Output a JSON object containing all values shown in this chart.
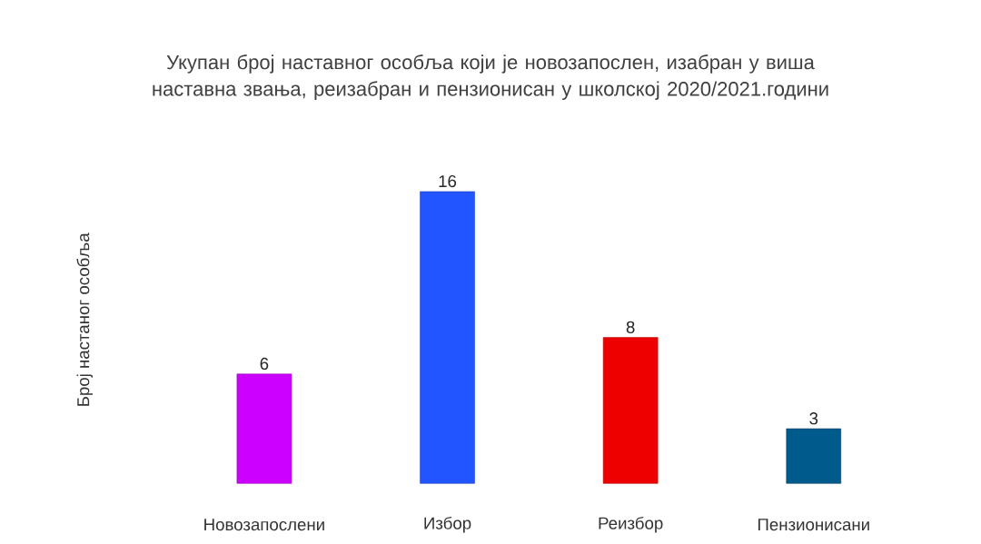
{
  "chart_data": {
    "type": "bar",
    "title": "Укупан број наставног особља који је новозапослен, изабран у виша наставна звања, реизабран и пензионисан у школској 2020/2021.години",
    "ylabel": "Број настаног особља",
    "categories": [
      "Новозапослени",
      "Избор",
      "Реизбор",
      "Пензионисани"
    ],
    "values": [
      6,
      16,
      8,
      3
    ],
    "colors": [
      "#cc00ff",
      "#2255ff",
      "#ee0000",
      "#005a8c"
    ],
    "data_labels": true
  }
}
